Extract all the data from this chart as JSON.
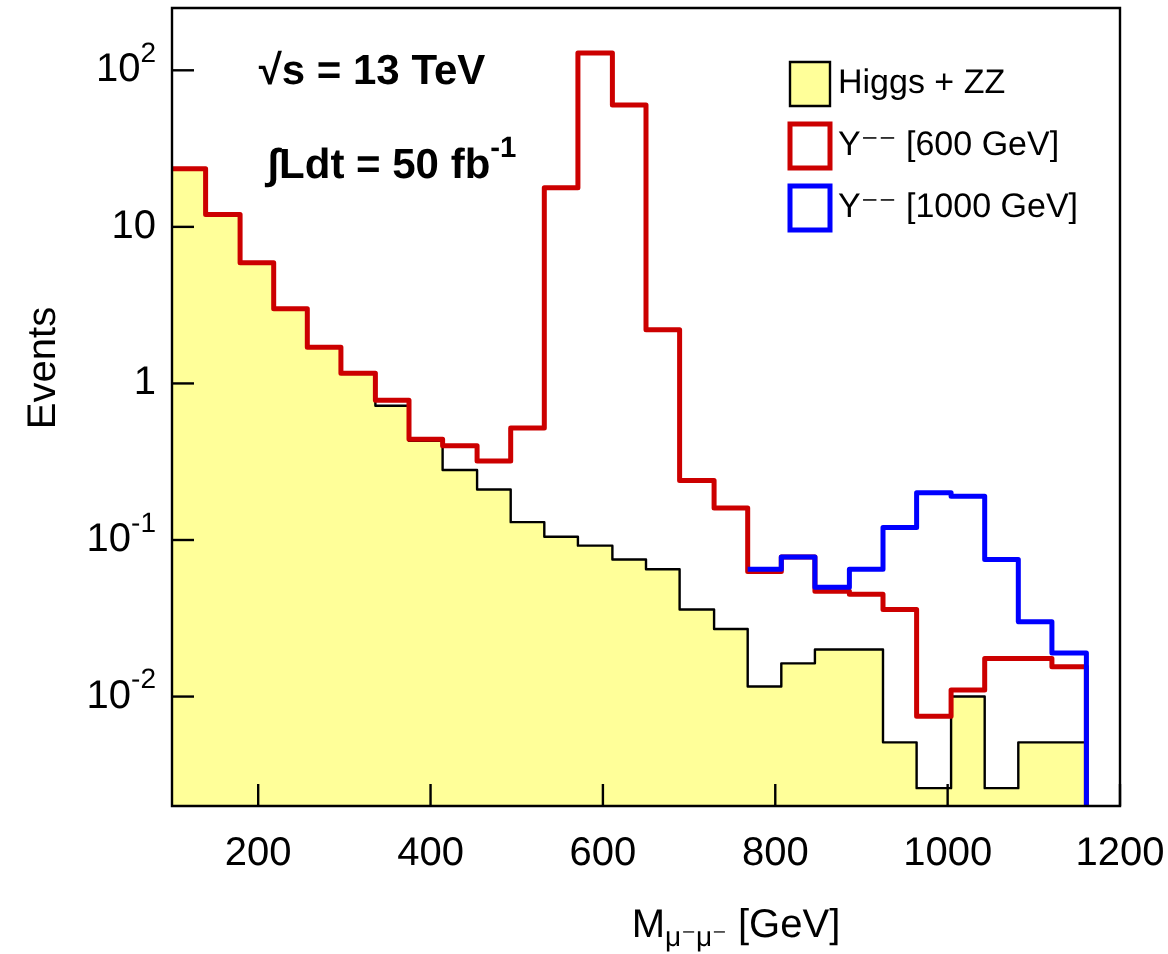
{
  "chart_data": {
    "type": "histogram",
    "xlabel": "M$_{μ⁻μ⁻}$ [GeV]",
    "ylabel": "Events",
    "annotations": [
      "√s = 13 TeV",
      "∫Ldt = 50 fb$^{-1}$"
    ],
    "bins": [
      100,
      139,
      179,
      218,
      257,
      296,
      336,
      375,
      414,
      454,
      493,
      532,
      571,
      611,
      650,
      689,
      729,
      768,
      807,
      846,
      886,
      925,
      964,
      1004,
      1043,
      1082,
      1121,
      1161
    ],
    "series": [
      {
        "name": "Higgs + ZZ",
        "color": "#ffff99",
        "values": [
          23.5,
          12,
          5.9,
          3.0,
          1.7,
          1.16,
          0.72,
          0.43,
          0.28,
          0.21,
          0.13,
          0.105,
          0.092,
          0.075,
          0.065,
          0.036,
          0.027,
          0.0116,
          0.0163,
          0.02,
          0.02,
          0.0051,
          0.0026,
          0.01,
          0.0026,
          0.0051,
          0.0051
        ]
      },
      {
        "name": "Y⁻⁻ [600 GeV]",
        "color": "#cc0000",
        "values": [
          23.5,
          12,
          5.9,
          3.0,
          1.7,
          1.16,
          0.78,
          0.44,
          0.4,
          0.32,
          0.52,
          17.8,
          129,
          60,
          2.2,
          0.24,
          0.16,
          0.063,
          0.078,
          0.047,
          0.045,
          0.036,
          0.0075,
          0.011,
          0.0175,
          0.0175,
          0.0155
        ]
      },
      {
        "name": "Y⁻⁻ [1000 GeV]",
        "color": "#0000ff",
        "bins": [
          768,
          807,
          846,
          886,
          925,
          964,
          1004,
          1043,
          1082,
          1121,
          1161
        ],
        "values": [
          0.065,
          0.078,
          0.05,
          0.065,
          0.12,
          0.2,
          0.19,
          0.075,
          0.03,
          0.019
        ]
      }
    ],
    "xlim": [
      100,
      1200
    ],
    "xticks": [
      200,
      400,
      600,
      800,
      1000,
      1200
    ],
    "ylim": [
      0.002,
      250
    ],
    "yticks": [
      {
        "value": 0.01,
        "label": "10$^{-2}$"
      },
      {
        "value": 0.1,
        "label": "10$^{-1}$"
      },
      1,
      10,
      {
        "value": 100,
        "label": "10$^{2}$"
      }
    ],
    "log": "y",
    "grid": false,
    "legend": "top right"
  }
}
